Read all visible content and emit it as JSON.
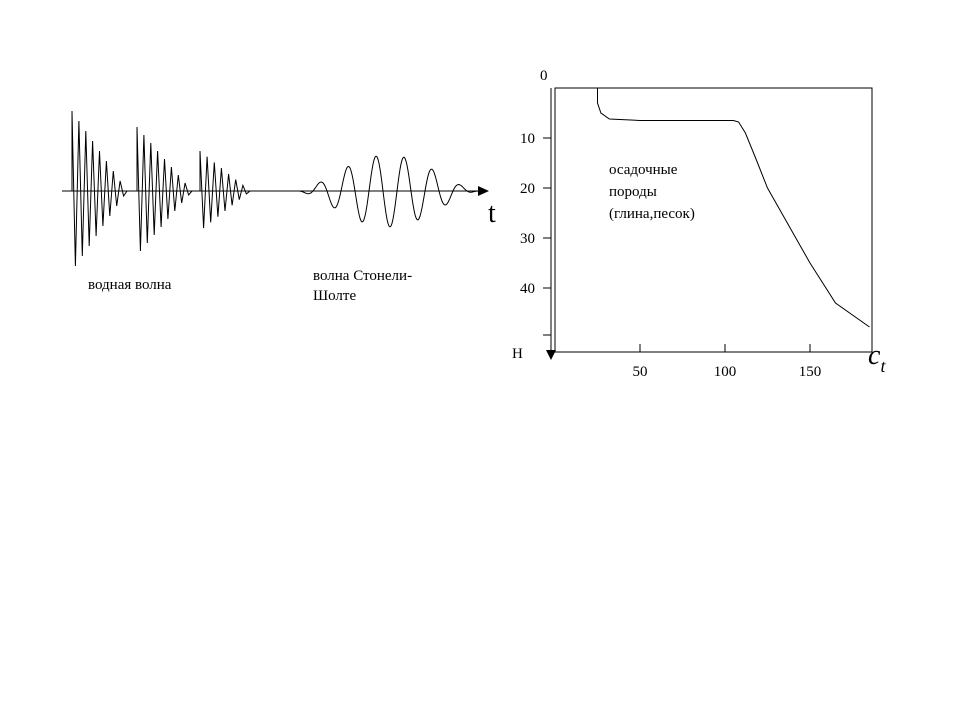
{
  "left_figure": {
    "time_axis_label": "t",
    "water_wave_label": "водная волна",
    "stoneley_label_line1": "волна Стонели-",
    "stoneley_label_line2": "Шолте"
  },
  "chart_data": {
    "type": "line",
    "x_axis": {
      "label": "c",
      "label_subscript": "t",
      "ticks": [
        50,
        100,
        150
      ],
      "range": [
        0,
        185
      ]
    },
    "y_axis": {
      "label": "H",
      "ticks": [
        0,
        10,
        20,
        30,
        40
      ],
      "range": [
        0,
        50
      ],
      "inverted": true
    },
    "annotation_lines": [
      "осадочные",
      "породы",
      "(глина,песок)"
    ],
    "series": [
      {
        "points": [
          [
            25,
            0
          ],
          [
            25,
            3
          ],
          [
            27,
            5
          ],
          [
            32,
            6.2
          ],
          [
            50,
            6.5
          ],
          [
            80,
            6.5
          ],
          [
            105,
            6.5
          ],
          [
            108,
            6.8
          ],
          [
            112,
            9
          ],
          [
            118,
            14
          ],
          [
            125,
            20
          ],
          [
            135,
            26
          ],
          [
            150,
            35
          ],
          [
            165,
            43
          ],
          [
            185,
            52
          ]
        ]
      }
    ]
  }
}
